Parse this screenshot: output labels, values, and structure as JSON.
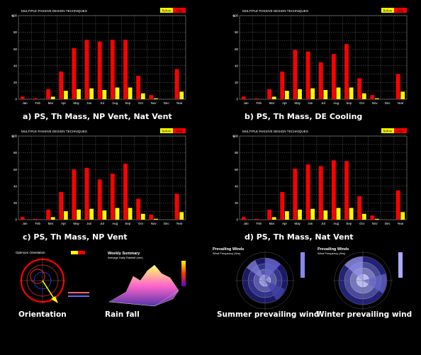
{
  "colors": {
    "before": "#ffff00",
    "after": "#ff0000",
    "grid": "#888888",
    "background": "#000000"
  },
  "legend": {
    "before": "Before",
    "after": "After"
  },
  "chart_data": [
    {
      "type": "bar",
      "title": "MULTIPLE PASSIVE DESIGN TECHNIQUES",
      "ylabel": "%",
      "categories": [
        "Jan",
        "Feb",
        "Mar",
        "Apr",
        "May",
        "Jun",
        "Jul",
        "Aug",
        "Sep",
        "Oct",
        "Nov",
        "Dec",
        "Year"
      ],
      "ylim": [
        0,
        100
      ],
      "yticks": [
        0,
        10,
        20,
        30,
        40,
        50,
        60,
        70,
        80,
        90,
        100
      ],
      "ytick_labels": [
        "0",
        "",
        "20",
        "",
        "40",
        "",
        "60",
        "",
        "80",
        "",
        "100"
      ],
      "series": [
        {
          "name": "Before",
          "values": [
            0,
            0,
            3,
            10,
            12,
            13,
            11,
            14,
            14,
            7,
            1,
            0,
            9
          ]
        },
        {
          "name": "After",
          "values": [
            3,
            1,
            12,
            33,
            61,
            71,
            69,
            71,
            71,
            28,
            5,
            0,
            36
          ]
        }
      ],
      "caption": "a) PS, Th Mass, NP Vent, Nat Vent"
    },
    {
      "type": "bar",
      "title": "MULTIPLE PASSIVE DESIGN TECHNIQUES",
      "ylabel": "%",
      "categories": [
        "Jan",
        "Feb",
        "Mar",
        "Apr",
        "May",
        "Jun",
        "Jul",
        "Aug",
        "Sep",
        "Oct",
        "Nov",
        "Dec",
        "Year"
      ],
      "ylim": [
        0,
        100
      ],
      "yticks": [
        0,
        10,
        20,
        30,
        40,
        50,
        60,
        70,
        80,
        90,
        100
      ],
      "ytick_labels": [
        "0",
        "",
        "20",
        "",
        "40",
        "",
        "60",
        "",
        "80",
        "",
        "100"
      ],
      "series": [
        {
          "name": "Before",
          "values": [
            0,
            0,
            3,
            10,
            12,
            13,
            11,
            14,
            14,
            7,
            1,
            0,
            9
          ]
        },
        {
          "name": "After",
          "values": [
            3,
            1,
            12,
            33,
            59,
            57,
            44,
            54,
            66,
            25,
            5,
            0,
            30
          ]
        }
      ],
      "caption": "b) PS, Th Mass, DE Cooling"
    },
    {
      "type": "bar",
      "title": "MULTIPLE PASSIVE DESIGN TECHNIQUES",
      "ylabel": "%",
      "categories": [
        "Jan",
        "Feb",
        "Mar",
        "Apr",
        "May",
        "Jun",
        "Jul",
        "Aug",
        "Sep",
        "Oct",
        "Nov",
        "Dec",
        "Year"
      ],
      "ylim": [
        0,
        100
      ],
      "yticks": [
        0,
        10,
        20,
        30,
        40,
        50,
        60,
        70,
        80,
        90,
        100
      ],
      "ytick_labels": [
        "0",
        "",
        "20",
        "",
        "40",
        "",
        "60",
        "",
        "80",
        "",
        "100"
      ],
      "series": [
        {
          "name": "Before",
          "values": [
            0,
            0,
            3,
            10,
            12,
            13,
            11,
            14,
            14,
            7,
            1,
            0,
            9
          ]
        },
        {
          "name": "After",
          "values": [
            3,
            1,
            12,
            33,
            60,
            62,
            48,
            55,
            67,
            25,
            6,
            0,
            31
          ]
        }
      ],
      "caption": "c) PS, Th Mass, NP Vent"
    },
    {
      "type": "bar",
      "title": "MULTIPLE PASSIVE DESIGN TECHNIQUES",
      "ylabel": "%",
      "categories": [
        "Jan",
        "Feb",
        "Mar",
        "Apr",
        "May",
        "Jun",
        "Jul",
        "Aug",
        "Sep",
        "Oct",
        "Nov",
        "Dec",
        "Year"
      ],
      "ylim": [
        0,
        100
      ],
      "yticks": [
        0,
        10,
        20,
        30,
        40,
        50,
        60,
        70,
        80,
        90,
        100
      ],
      "ytick_labels": [
        "0",
        "",
        "20",
        "",
        "40",
        "",
        "60",
        "",
        "80",
        "",
        "100"
      ],
      "series": [
        {
          "name": "Before",
          "values": [
            0,
            0,
            3,
            10,
            12,
            13,
            11,
            14,
            14,
            7,
            1,
            0,
            9
          ]
        },
        {
          "name": "After",
          "values": [
            3,
            1,
            12,
            33,
            61,
            66,
            64,
            71,
            70,
            28,
            5,
            0,
            35
          ]
        }
      ],
      "caption": "d) PS, Th Mass, Nat Vent"
    }
  ],
  "thumbnails": {
    "orientation": {
      "caption": "Orientation",
      "title": "Optimum Orientation"
    },
    "rainfall": {
      "caption": "Rain fall",
      "title": "Weekly Summary",
      "subtitle": "Average Daily Rainfall (mm)"
    },
    "summer_wind": {
      "caption": "Summer prevailing wind",
      "title": "Prevailing Winds",
      "subtitle": "Wind Frequency (Hrs)"
    },
    "winter_wind": {
      "caption": "Winter prevailing wind",
      "title": "Prevailing Winds",
      "subtitle": "Wind Frequency (Hrs)"
    }
  }
}
